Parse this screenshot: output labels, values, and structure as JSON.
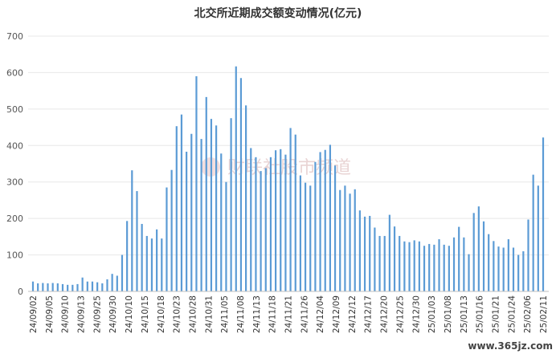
{
  "chart_data": {
    "type": "bar",
    "title": "北交所近期成交额变动情况(亿元)",
    "ylim": [
      0,
      700
    ],
    "yticks": [
      0,
      100,
      200,
      300,
      400,
      500,
      600,
      700
    ],
    "grid": true,
    "bar_color": "#5b9bd5",
    "x_labels": [
      "24/09/02",
      "24/09/05",
      "24/09/10",
      "24/09/13",
      "24/09/25",
      "24/09/30",
      "24/10/10",
      "24/10/15",
      "24/10/18",
      "24/10/23",
      "24/10/28",
      "24/10/31",
      "24/11/05",
      "24/11/08",
      "24/11/13",
      "24/11/18",
      "24/11/21",
      "24/11/26",
      "24/12/04",
      "24/12/09",
      "24/12/12",
      "24/12/17",
      "24/12/20",
      "24/12/25",
      "24/12/30",
      "25/01/03",
      "25/01/08",
      "25/01/13",
      "25/01/16",
      "25/01/21",
      "25/01/24",
      "25/02/06",
      "25/02/11"
    ],
    "values": [
      27,
      22,
      23,
      22,
      23,
      22,
      20,
      18,
      18,
      20,
      38,
      27,
      27,
      25,
      22,
      33,
      48,
      43,
      100,
      193,
      332,
      275,
      185,
      152,
      145,
      170,
      145,
      285,
      333,
      453,
      485,
      383,
      432,
      590,
      418,
      533,
      473,
      455,
      378,
      300,
      475,
      617,
      585,
      510,
      393,
      368,
      330,
      338,
      368,
      387,
      390,
      375,
      448,
      430,
      318,
      298,
      290,
      355,
      382,
      388,
      402,
      345,
      278,
      290,
      268,
      280,
      222,
      205,
      207,
      175,
      152,
      152,
      210,
      178,
      152,
      137,
      135,
      140,
      137,
      125,
      130,
      128,
      143,
      128,
      125,
      148,
      177,
      148,
      102,
      215,
      233,
      192,
      157,
      138,
      123,
      120,
      143,
      120,
      100,
      110,
      197,
      320,
      290,
      422
    ]
  },
  "watermark": {
    "text": "财联社股市频道",
    "site": "www.365jz.com"
  }
}
